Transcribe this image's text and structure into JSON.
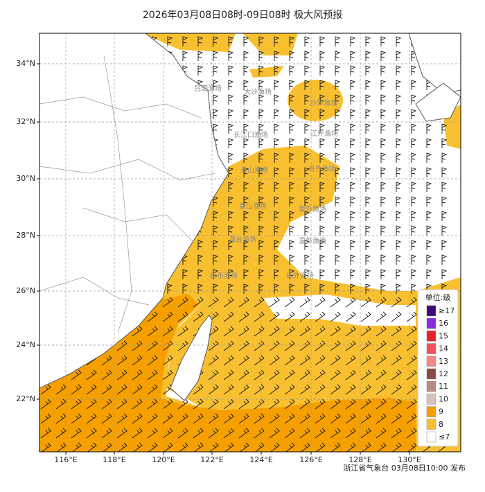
{
  "map": {
    "title": "2026年03月08日08时-09日08时 极大风预报",
    "lon_labels": [
      "116°E",
      "118°E",
      "120°E",
      "122°E",
      "124°E",
      "126°E",
      "128°E",
      "130°E"
    ],
    "lat_labels": [
      "34°N",
      "32°N",
      "30°N",
      "28°N",
      "26°N",
      "24°N",
      "22°N"
    ],
    "fishing_areas": [
      "吕泗渔场",
      "大沙渔场",
      "沙外渔场",
      "长江口渔场",
      "江外渔场",
      "舟山渔场",
      "舟外渔场",
      "鱼山渔场",
      "鱼外渔场",
      "温台渔场",
      "温外渔场",
      "闽东渔场",
      "闽外渔场"
    ],
    "legend": {
      "title": "单位:级",
      "levels": [
        {
          "label": "≥17",
          "color": "#3c0a78"
        },
        {
          "label": "16",
          "color": "#8a2be2"
        },
        {
          "label": "15",
          "color": "#e8202a"
        },
        {
          "label": "14",
          "color": "#f25060"
        },
        {
          "label": "13",
          "color": "#f28888"
        },
        {
          "label": "12",
          "color": "#8b4a44"
        },
        {
          "label": "11",
          "color": "#b88a86"
        },
        {
          "label": "10",
          "color": "#dcc0bc"
        },
        {
          "label": "9",
          "color": "#f5a000"
        },
        {
          "label": "8",
          "color": "#f8c030"
        },
        {
          "label": "≤7",
          "color": "#ffffff"
        }
      ]
    },
    "footer": "浙江省气象台 03月08日10:00 发布"
  }
}
